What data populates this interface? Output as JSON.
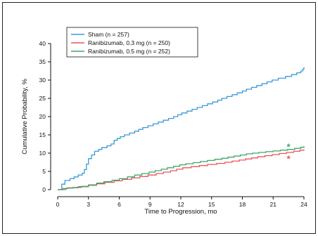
{
  "chart_data": {
    "type": "line",
    "step": true,
    "xlabel": "Time to Progression, mo",
    "ylabel": "Cumulative Probability, %",
    "xlim": [
      0,
      24
    ],
    "ylim": [
      0,
      40
    ],
    "xticks": [
      "0",
      "3",
      "6",
      "9",
      "12",
      "15",
      "18",
      "21",
      "24"
    ],
    "yticks": [
      "0",
      "5",
      "10",
      "15",
      "20",
      "25",
      "30",
      "35",
      "40"
    ],
    "legend_position": "top-left",
    "series": [
      {
        "name": "Sham (n = 257)",
        "color": "#3a9ad9",
        "x": [
          0,
          0.4,
          0.7,
          1.2,
          1.6,
          2.0,
          2.4,
          2.6,
          2.8,
          3.0,
          3.3,
          3.6,
          4.0,
          4.3,
          4.8,
          5.2,
          5.5,
          5.8,
          6.1,
          6.5,
          7.0,
          7.5,
          7.9,
          8.3,
          8.8,
          9.3,
          9.8,
          10.3,
          10.8,
          11.3,
          11.7,
          12.1,
          12.6,
          13.1,
          13.6,
          14.1,
          14.6,
          15.1,
          15.6,
          16.0,
          16.5,
          17.0,
          17.5,
          18.0,
          18.4,
          18.9,
          19.4,
          19.9,
          20.4,
          20.9,
          21.5,
          22.2,
          22.8,
          23.3,
          23.7,
          23.9,
          24.0
        ],
        "y": [
          0,
          1.5,
          2.5,
          3.0,
          3.5,
          4.0,
          4.5,
          5.5,
          7.0,
          8.5,
          9.5,
          10.5,
          11.0,
          11.5,
          12.0,
          12.5,
          13.5,
          14.0,
          14.5,
          15.0,
          15.5,
          16.0,
          16.5,
          17.0,
          17.5,
          18.0,
          18.5,
          19.0,
          19.5,
          20.0,
          20.5,
          21.0,
          21.5,
          22.0,
          22.5,
          23.0,
          23.5,
          24.0,
          24.5,
          25.0,
          25.5,
          26.0,
          26.5,
          27.0,
          27.5,
          28.0,
          28.5,
          29.0,
          29.5,
          30.0,
          30.5,
          31.0,
          31.5,
          32.0,
          32.5,
          33.0,
          33.5
        ]
      },
      {
        "name": "Ranibizumab, 0.3 mg (n = 250)",
        "color": "#e8555a",
        "x": [
          0,
          0.5,
          1.0,
          2.0,
          3.0,
          3.8,
          4.6,
          5.5,
          6.3,
          7.2,
          8.0,
          8.8,
          9.6,
          10.3,
          11.0,
          11.6,
          12.2,
          13.0,
          13.8,
          14.6,
          15.5,
          16.3,
          17.0,
          17.7,
          18.3,
          18.9,
          19.5,
          20.2,
          20.9,
          21.6,
          22.3,
          23.0,
          23.6,
          24.0
        ],
        "y": [
          0,
          0.3,
          0.5,
          0.8,
          1.2,
          1.6,
          2.0,
          2.4,
          2.8,
          3.2,
          3.6,
          4.0,
          4.4,
          4.8,
          5.2,
          5.6,
          6.0,
          6.3,
          6.6,
          6.9,
          7.2,
          7.5,
          7.8,
          8.1,
          8.4,
          8.7,
          9.0,
          9.3,
          9.6,
          9.9,
          10.2,
          10.5,
          10.8,
          11.0
        ]
      },
      {
        "name": "Ranibizumab, 0.5 mg (n = 252)",
        "color": "#3aa86a",
        "x": [
          0,
          0.8,
          1.5,
          2.3,
          3.0,
          3.8,
          4.5,
          5.3,
          6.0,
          6.8,
          7.5,
          8.2,
          8.9,
          9.5,
          10.1,
          10.7,
          11.3,
          11.9,
          12.5,
          13.2,
          13.9,
          14.6,
          15.3,
          16.0,
          16.6,
          17.2,
          17.8,
          18.4,
          19.0,
          19.6,
          20.3,
          21.0,
          21.7,
          22.4,
          23.1,
          23.7,
          24.0
        ],
        "y": [
          0,
          0.4,
          0.6,
          0.9,
          1.3,
          1.8,
          2.2,
          2.6,
          3.0,
          3.5,
          4.0,
          4.4,
          4.8,
          5.2,
          5.6,
          6.0,
          6.4,
          6.8,
          7.1,
          7.4,
          7.7,
          8.0,
          8.3,
          8.6,
          8.9,
          9.2,
          9.5,
          9.8,
          10.0,
          10.2,
          10.4,
          10.6,
          10.8,
          11.0,
          11.3,
          11.6,
          11.9
        ]
      }
    ],
    "markers": [
      {
        "label": "*",
        "x": 22.5,
        "y": 11.8,
        "color": "#3aa86a"
      },
      {
        "label": "*",
        "x": 22.5,
        "y": 8.6,
        "color": "#e8555a"
      }
    ]
  }
}
